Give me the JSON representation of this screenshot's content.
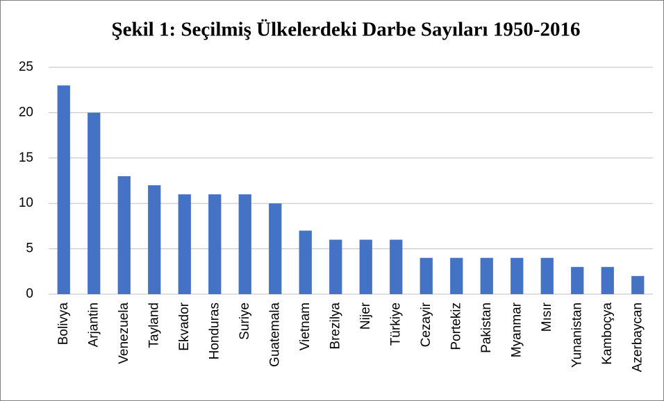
{
  "chart_data": {
    "type": "bar",
    "title": "Şekil 1: Seçilmiş Ülkelerdeki Darbe Sayıları 1950-2016",
    "categories": [
      "Bolivya",
      "Arjantin",
      "Venezuela",
      "Tayland",
      "Ekvador",
      "Honduras",
      "Suriye",
      "Guatemala",
      "Vietnam",
      "Brezilya",
      "Nijer",
      "Türkiye",
      "Cezayir",
      "Portekiz",
      "Pakistan",
      "Myanmar",
      "Mısır",
      "Yunanistan",
      "Kamboçya",
      "Azerbaycan"
    ],
    "values": [
      23,
      20,
      13,
      12,
      11,
      11,
      11,
      10,
      7,
      6,
      6,
      6,
      4,
      4,
      4,
      4,
      4,
      3,
      3,
      2
    ],
    "color": "#4472c4",
    "ylim": [
      0,
      25
    ],
    "yticks": [
      0,
      5,
      10,
      15,
      20,
      25
    ],
    "grid": true
  }
}
